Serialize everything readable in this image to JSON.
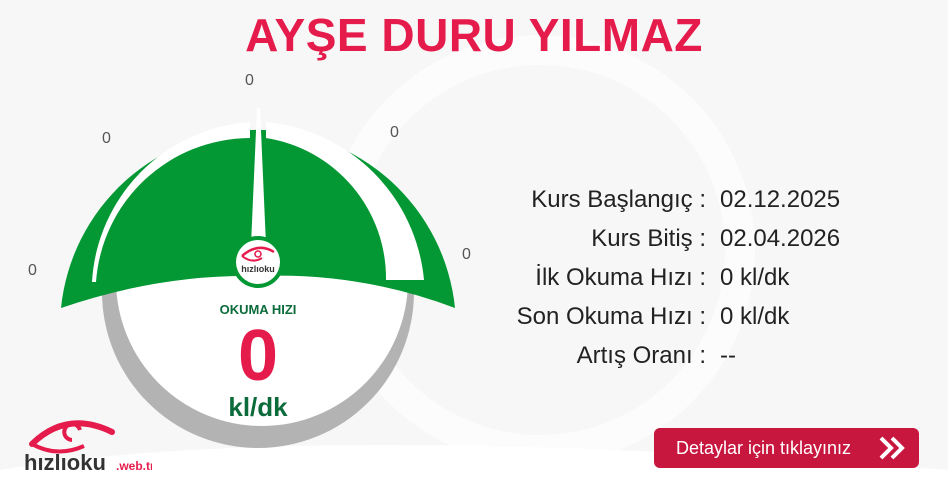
{
  "title": "AYŞE DURU YILMAZ",
  "gauge": {
    "ticks": [
      "0",
      "0",
      "0",
      "0",
      "0"
    ],
    "label": "OKUMA HIZI",
    "value": "0",
    "unit": "kl/dk",
    "level": 0,
    "colors": {
      "arc": "#039834",
      "ring": "#b3b3b3",
      "value": "#e51b4c",
      "text": "#0b6b3a"
    }
  },
  "info": [
    {
      "label": "Kurs Başlangıç :",
      "value": "02.12.2025"
    },
    {
      "label": "Kurs Bitiş :",
      "value": "02.04.2026"
    },
    {
      "label": "İlk Okuma Hızı :",
      "value": "0 kl/dk"
    },
    {
      "label": "Son Okuma Hızı :",
      "value": "0 kl/dk"
    },
    {
      "label": "Artış Oranı :",
      "value": "--"
    }
  ],
  "button": {
    "label": "Detaylar için tıklayınız",
    "icon": "double-chevron-right-icon",
    "color": "#c8173f"
  },
  "logo": {
    "text": "hızlıoku",
    "suffix": ".web.tr",
    "badge_text": "hızlıoku",
    "badge_suffix": ".web.tr"
  }
}
